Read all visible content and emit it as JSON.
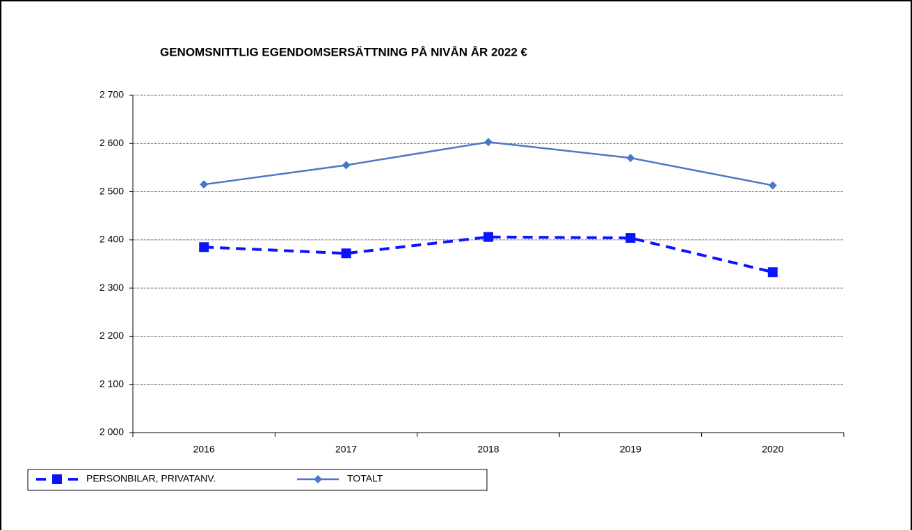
{
  "chart_data": {
    "type": "line",
    "title": "GENOMSNITTLIG EGENDOMSERSÄTTNING PÅ NIVÅN ÅR 2022 €",
    "categories": [
      "2016",
      "2017",
      "2018",
      "2019",
      "2020"
    ],
    "series": [
      {
        "name": "PERSONBILAR, PRIVATANV.",
        "color": "#0a14ff",
        "values": [
          2385,
          2372,
          2406,
          2404,
          2333
        ]
      },
      {
        "name": "TOTALT",
        "color": "#4a78c8",
        "values": [
          2515,
          2555,
          2603,
          2570,
          2513
        ]
      }
    ],
    "ylim": [
      2000,
      2700
    ],
    "yticks": [
      {
        "value": 2000,
        "label": "2 000"
      },
      {
        "value": 2100,
        "label": "2 100"
      },
      {
        "value": 2200,
        "label": "2 200"
      },
      {
        "value": 2300,
        "label": "2 300"
      },
      {
        "value": 2400,
        "label": "2 400"
      },
      {
        "value": 2500,
        "label": "2 500"
      },
      {
        "value": 2600,
        "label": "2 600"
      },
      {
        "value": 2700,
        "label": "2 700"
      }
    ],
    "grid": true,
    "legend": "bottom"
  }
}
